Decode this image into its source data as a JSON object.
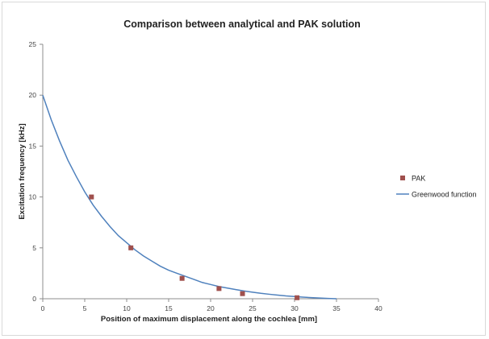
{
  "chart_data": {
    "type": "scatter",
    "title": "Comparison between analytical and PAK solution",
    "xlabel": "Position of maximum displacement along the cochlea [mm]",
    "ylabel": "Excitation frequency [kHz]",
    "xlim": [
      0,
      40
    ],
    "ylim": [
      0,
      25
    ],
    "x_ticks": [
      "0",
      "5",
      "10",
      "15",
      "20",
      "25",
      "30",
      "35",
      "40"
    ],
    "y_ticks": [
      "0",
      "5",
      "10",
      "15",
      "20",
      "25"
    ],
    "grid": false,
    "legend_position": "right",
    "series": [
      {
        "name": "PAK",
        "kind": "markers",
        "marker": "square",
        "color": "#a0504d",
        "x": [
          5.8,
          10.5,
          16.6,
          21.0,
          23.8,
          30.3
        ],
        "y": [
          10.0,
          5.0,
          2.0,
          1.0,
          0.5,
          0.1
        ]
      },
      {
        "name": "Greenwood function",
        "kind": "line",
        "color": "#4f81bd",
        "x": [
          0,
          1,
          2,
          3,
          4,
          5,
          6,
          7,
          8,
          9,
          10,
          11,
          12,
          13,
          14,
          15,
          16,
          17,
          18,
          19,
          20,
          21,
          22,
          23,
          24,
          25,
          26,
          27,
          28,
          29,
          30,
          31,
          32,
          33,
          34,
          35
        ],
        "y": [
          20.0,
          17.6,
          15.5,
          13.6,
          12.0,
          10.5,
          9.2,
          8.1,
          7.1,
          6.2,
          5.5,
          4.8,
          4.2,
          3.7,
          3.2,
          2.8,
          2.5,
          2.2,
          1.9,
          1.6,
          1.4,
          1.2,
          1.05,
          0.9,
          0.76,
          0.64,
          0.53,
          0.44,
          0.36,
          0.28,
          0.22,
          0.16,
          0.11,
          0.07,
          0.03,
          0.0
        ]
      }
    ]
  }
}
